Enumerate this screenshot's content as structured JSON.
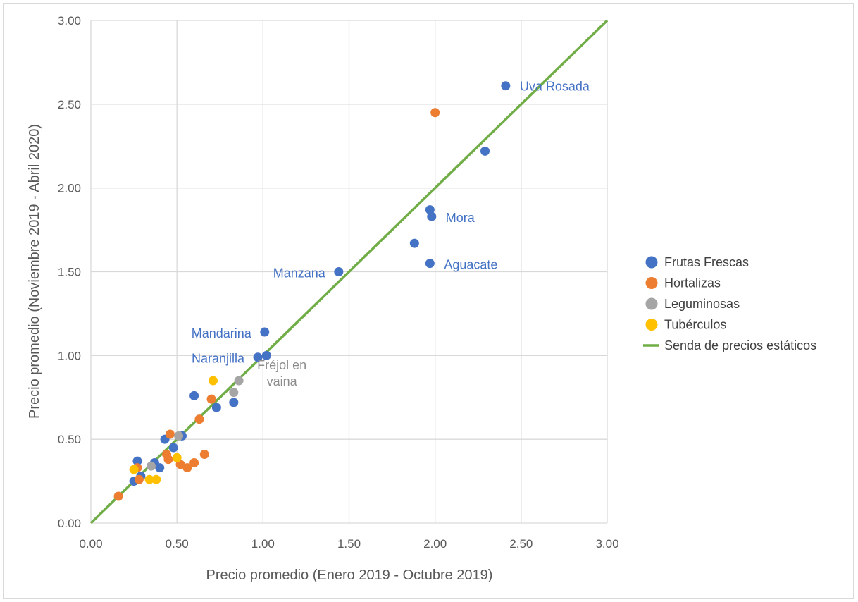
{
  "chart_data": {
    "type": "scatter",
    "xlabel": "Precio promedio (Enero 2019 - Octubre 2019)",
    "ylabel": "Precio promedio (Noviembre 2019 - Abril 2020)",
    "xlim": [
      0,
      3
    ],
    "ylim": [
      0,
      3
    ],
    "x_ticks": [
      "0.00",
      "0.50",
      "1.00",
      "1.50",
      "2.00",
      "2.50",
      "3.00"
    ],
    "y_ticks": [
      "0.00",
      "0.50",
      "1.00",
      "1.50",
      "2.00",
      "2.50",
      "3.00"
    ],
    "grid": true,
    "legend_position": "right",
    "series": [
      {
        "name": "Frutas Frescas",
        "color": "#4472c4",
        "points": [
          [
            2.41,
            2.61
          ],
          [
            2.29,
            2.22
          ],
          [
            1.97,
            1.87
          ],
          [
            1.98,
            1.83
          ],
          [
            1.88,
            1.67
          ],
          [
            1.97,
            1.55
          ],
          [
            1.44,
            1.5
          ],
          [
            1.01,
            1.14
          ],
          [
            0.97,
            0.99
          ],
          [
            1.02,
            1.0
          ],
          [
            0.6,
            0.76
          ],
          [
            0.73,
            0.69
          ],
          [
            0.83,
            0.72
          ],
          [
            0.53,
            0.52
          ],
          [
            0.43,
            0.5
          ],
          [
            0.48,
            0.45
          ],
          [
            0.4,
            0.33
          ],
          [
            0.37,
            0.36
          ],
          [
            0.27,
            0.37
          ],
          [
            0.25,
            0.25
          ],
          [
            0.29,
            0.28
          ]
        ]
      },
      {
        "name": "Hortalizas",
        "color": "#ed7d31",
        "points": [
          [
            2.0,
            2.45
          ],
          [
            0.7,
            0.74
          ],
          [
            0.63,
            0.62
          ],
          [
            0.46,
            0.53
          ],
          [
            0.66,
            0.41
          ],
          [
            0.6,
            0.36
          ],
          [
            0.56,
            0.33
          ],
          [
            0.52,
            0.35
          ],
          [
            0.45,
            0.38
          ],
          [
            0.44,
            0.41
          ],
          [
            0.28,
            0.26
          ],
          [
            0.27,
            0.33
          ],
          [
            0.16,
            0.16
          ]
        ]
      },
      {
        "name": "Leguminosas",
        "color": "#a5a5a5",
        "points": [
          [
            0.86,
            0.85
          ],
          [
            0.83,
            0.78
          ],
          [
            0.51,
            0.52
          ],
          [
            0.35,
            0.34
          ]
        ]
      },
      {
        "name": "Tubérculos",
        "color": "#ffc000",
        "points": [
          [
            0.71,
            0.85
          ],
          [
            0.5,
            0.39
          ],
          [
            0.38,
            0.26
          ],
          [
            0.34,
            0.26
          ],
          [
            0.25,
            0.32
          ]
        ]
      }
    ],
    "line": {
      "name": "Senda de precios estáticos",
      "color": "#70ad47",
      "from": [
        0,
        0
      ],
      "to": [
        3,
        3
      ]
    },
    "annotations": [
      {
        "text": "Uva Rosada",
        "x": 2.41,
        "y": 2.61,
        "color": "#4472c4"
      },
      {
        "text": "Mora",
        "x": 1.98,
        "y": 1.83,
        "color": "#4472c4"
      },
      {
        "text": "Aguacate",
        "x": 1.97,
        "y": 1.55,
        "color": "#4472c4"
      },
      {
        "text": "Manzana",
        "x": 1.44,
        "y": 1.5,
        "color": "#4472c4"
      },
      {
        "text": "Mandarina",
        "x": 1.01,
        "y": 1.14,
        "color": "#4472c4"
      },
      {
        "text": "Naranjilla",
        "x": 0.97,
        "y": 0.99,
        "color": "#4472c4"
      },
      {
        "text": "Fréjol en",
        "x": 0.86,
        "y": 0.85,
        "color": "#8c8c8c"
      },
      {
        "text": "vaina",
        "x": 0.86,
        "y": 0.85,
        "color": "#8c8c8c"
      }
    ]
  }
}
